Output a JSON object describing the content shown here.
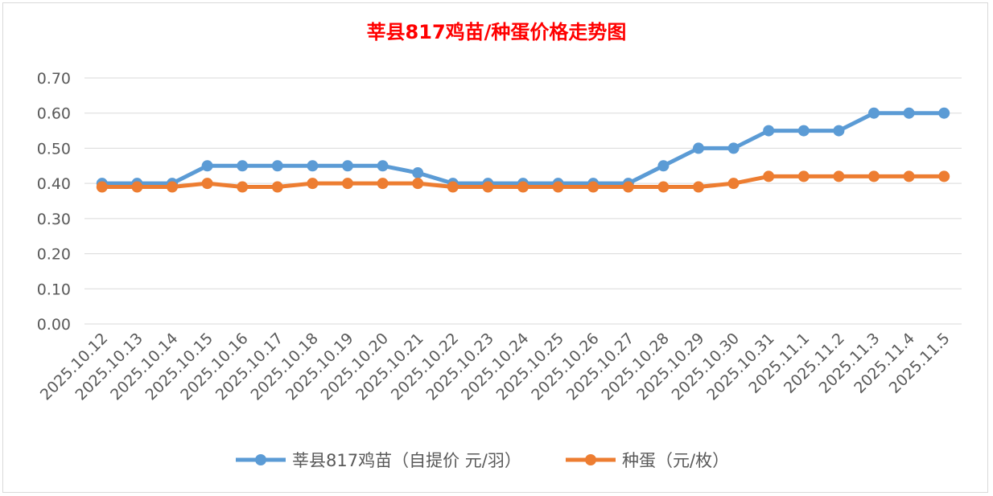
{
  "chart_data": {
    "type": "line",
    "title": "莘县817鸡苗/种蛋价格走势图",
    "xlabel": "",
    "ylabel": "",
    "ylim": [
      0,
      0.7
    ],
    "yticks": [
      "0.00",
      "0.10",
      "0.20",
      "0.30",
      "0.40",
      "0.50",
      "0.60",
      "0.70"
    ],
    "grid": true,
    "legend_position": "bottom",
    "categories": [
      "2025.10.12",
      "2025.10.13",
      "2025.10.14",
      "2025.10.15",
      "2025.10.16",
      "2025.10.17",
      "2025.10.18",
      "2025.10.19",
      "2025.10.20",
      "2025.10.21",
      "2025.10.22",
      "2025.10.23",
      "2025.10.24",
      "2025.10.25",
      "2025.10.26",
      "2025.10.27",
      "2025.10.28",
      "2025.10.29",
      "2025.10.30",
      "2025.10.31",
      "2025.11.1",
      "2025.11.2",
      "2025.11.3",
      "2025.11.4",
      "2025.11.5"
    ],
    "series": [
      {
        "name": "莘县817鸡苗（自提价 元/羽）",
        "color": "#5b9bd5",
        "values": [
          0.4,
          0.4,
          0.4,
          0.45,
          0.45,
          0.45,
          0.45,
          0.45,
          0.45,
          0.43,
          0.4,
          0.4,
          0.4,
          0.4,
          0.4,
          0.4,
          0.45,
          0.5,
          0.5,
          0.55,
          0.55,
          0.55,
          0.6,
          0.6,
          0.6
        ]
      },
      {
        "name": "种蛋（元/枚）",
        "color": "#ed7d31",
        "values": [
          0.39,
          0.39,
          0.39,
          0.4,
          0.39,
          0.39,
          0.4,
          0.4,
          0.4,
          0.4,
          0.39,
          0.39,
          0.39,
          0.39,
          0.39,
          0.39,
          0.39,
          0.39,
          0.4,
          0.42,
          0.42,
          0.42,
          0.42,
          0.42,
          0.42
        ]
      }
    ],
    "title_color": "#ff0000"
  }
}
